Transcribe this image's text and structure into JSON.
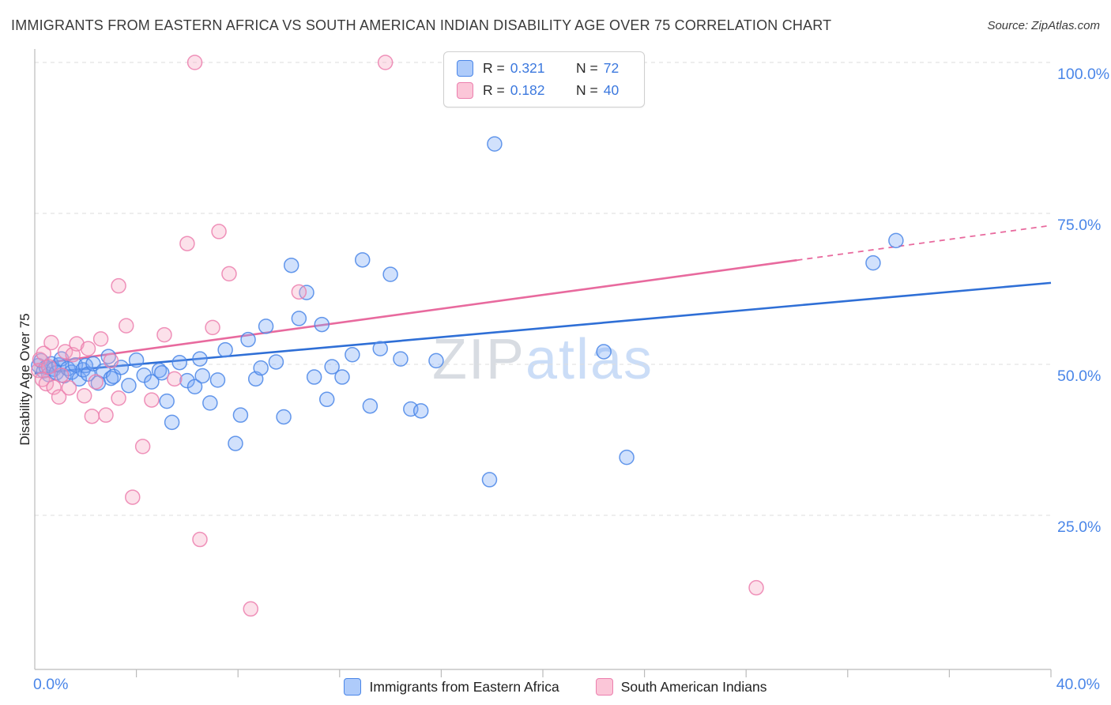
{
  "header": {
    "title": "IMMIGRANTS FROM EASTERN AFRICA VS SOUTH AMERICAN INDIAN DISABILITY AGE OVER 75 CORRELATION CHART",
    "source": "Source: ZipAtlas.com"
  },
  "watermark": {
    "part1": "ZIP",
    "part2": "atlas"
  },
  "legend_box": {
    "series": [
      {
        "r_label": "R =",
        "r_value": "0.321",
        "n_label": "N =",
        "n_value": "72",
        "color": "#aecbfa",
        "border": "#4a86e8"
      },
      {
        "r_label": "R =",
        "r_value": "0.182",
        "n_label": "N =",
        "n_value": "40",
        "color": "#fbc6d8",
        "border": "#ec7fae"
      }
    ]
  },
  "axes": {
    "y_label": "Disability Age Over 75",
    "y_ticks": [
      {
        "value": 100,
        "label": "100.0%"
      },
      {
        "value": 75,
        "label": "75.0%"
      },
      {
        "value": 50,
        "label": "50.0%"
      },
      {
        "value": 25,
        "label": "25.0%"
      }
    ],
    "x_min_label": "0.0%",
    "x_max_label": "40.0%",
    "tick_color": "#bbbbbb",
    "grid_color": "#dddddd",
    "label_color": "#4a86e8"
  },
  "bottom_legend": [
    {
      "label": "Immigrants from Eastern Africa",
      "color": "#aecbfa",
      "border": "#4a86e8"
    },
    {
      "label": "South American Indians",
      "color": "#fbc6d8",
      "border": "#ec7fae"
    }
  ],
  "chart_data": {
    "type": "scatter",
    "title": "Immigrants from Eastern Africa vs South American Indian Disability Age Over 75 Correlation",
    "xlabel": "Immigrants from Eastern Africa (%)",
    "ylabel": "Disability Age Over 75",
    "xlim": [
      0,
      40
    ],
    "ylim": [
      0,
      105
    ],
    "x_tick_interval": 4,
    "grid": "horizontal-dashed",
    "legend_position": "top-center",
    "series": [
      {
        "name": "Immigrants from Eastern Africa",
        "R": 0.321,
        "N": 72,
        "fill": "#7baaf7",
        "stroke": "#4a86e8",
        "points": [
          [
            0.15,
            49.8
          ],
          [
            0.25,
            50.6
          ],
          [
            0.35,
            48.9
          ],
          [
            0.45,
            49.5
          ],
          [
            0.55,
            48.3
          ],
          [
            0.65,
            50.1
          ],
          [
            0.75,
            49.2
          ],
          [
            0.85,
            48.6
          ],
          [
            0.95,
            49.9
          ],
          [
            1.05,
            50.9
          ],
          [
            1.15,
            48.1
          ],
          [
            1.3,
            49.3
          ],
          [
            1.45,
            48.7
          ],
          [
            1.6,
            49.9
          ],
          [
            1.75,
            47.6
          ],
          [
            1.9,
            49.1
          ],
          [
            2.0,
            49.8
          ],
          [
            2.1,
            48.4
          ],
          [
            2.3,
            50.1
          ],
          [
            2.5,
            46.9
          ],
          [
            2.7,
            48.9
          ],
          [
            2.9,
            51.3
          ],
          [
            3.0,
            47.7
          ],
          [
            3.1,
            48.0
          ],
          [
            3.4,
            49.5
          ],
          [
            3.7,
            46.5
          ],
          [
            4.0,
            50.7
          ],
          [
            4.3,
            48.2
          ],
          [
            4.6,
            47.1
          ],
          [
            4.9,
            49.0
          ],
          [
            5.0,
            48.6
          ],
          [
            5.2,
            43.9
          ],
          [
            5.4,
            40.4
          ],
          [
            5.7,
            50.3
          ],
          [
            6.0,
            47.3
          ],
          [
            6.3,
            46.3
          ],
          [
            6.5,
            50.9
          ],
          [
            6.6,
            48.1
          ],
          [
            6.9,
            43.6
          ],
          [
            7.2,
            47.4
          ],
          [
            7.5,
            52.4
          ],
          [
            7.9,
            36.9
          ],
          [
            8.1,
            41.6
          ],
          [
            8.4,
            54.1
          ],
          [
            8.7,
            47.6
          ],
          [
            8.9,
            49.4
          ],
          [
            9.1,
            56.3
          ],
          [
            9.5,
            50.4
          ],
          [
            9.8,
            41.3
          ],
          [
            10.1,
            66.4
          ],
          [
            10.4,
            57.6
          ],
          [
            10.7,
            61.9
          ],
          [
            11.0,
            47.9
          ],
          [
            11.3,
            56.6
          ],
          [
            11.5,
            44.2
          ],
          [
            11.7,
            49.6
          ],
          [
            12.1,
            47.9
          ],
          [
            12.5,
            51.6
          ],
          [
            12.9,
            67.3
          ],
          [
            13.2,
            43.1
          ],
          [
            13.6,
            52.6
          ],
          [
            14.0,
            64.9
          ],
          [
            14.4,
            50.9
          ],
          [
            14.8,
            42.6
          ],
          [
            15.2,
            42.3
          ],
          [
            15.8,
            50.6
          ],
          [
            17.9,
            30.9
          ],
          [
            18.1,
            86.5
          ],
          [
            22.4,
            52.1
          ],
          [
            23.3,
            34.6
          ],
          [
            33.0,
            66.8
          ],
          [
            33.9,
            70.5
          ]
        ]
      },
      {
        "name": "South American Indians",
        "R": 0.182,
        "N": 40,
        "fill": "#f7a8c4",
        "stroke": "#ec7fae",
        "points": [
          [
            0.15,
            49.0
          ],
          [
            0.2,
            50.8
          ],
          [
            0.3,
            47.5
          ],
          [
            0.35,
            51.8
          ],
          [
            0.45,
            46.8
          ],
          [
            0.55,
            49.6
          ],
          [
            0.65,
            53.6
          ],
          [
            0.75,
            46.2
          ],
          [
            0.95,
            44.6
          ],
          [
            1.05,
            48.2
          ],
          [
            1.2,
            52.1
          ],
          [
            1.35,
            46.1
          ],
          [
            1.5,
            51.6
          ],
          [
            1.65,
            53.4
          ],
          [
            1.95,
            44.8
          ],
          [
            2.1,
            52.6
          ],
          [
            2.25,
            41.4
          ],
          [
            2.4,
            47.1
          ],
          [
            2.6,
            54.2
          ],
          [
            2.8,
            41.6
          ],
          [
            3.0,
            50.6
          ],
          [
            3.3,
            44.4
          ],
          [
            3.3,
            63.0
          ],
          [
            3.6,
            56.4
          ],
          [
            3.85,
            28.0
          ],
          [
            4.25,
            36.4
          ],
          [
            4.6,
            44.1
          ],
          [
            5.1,
            54.9
          ],
          [
            5.5,
            47.6
          ],
          [
            6.0,
            70.0
          ],
          [
            6.3,
            100.0
          ],
          [
            6.5,
            21.0
          ],
          [
            7.0,
            56.1
          ],
          [
            7.25,
            72.0
          ],
          [
            7.65,
            65.0
          ],
          [
            8.5,
            9.5
          ],
          [
            10.4,
            62.0
          ],
          [
            13.8,
            100.0
          ],
          [
            22.6,
            100.0
          ],
          [
            28.4,
            13.0
          ]
        ]
      }
    ],
    "trend_lines": [
      {
        "series": "Immigrants from Eastern Africa",
        "color": "#2f6fd6",
        "style": "solid",
        "start": [
          0,
          48.5
        ],
        "end": [
          40,
          63.5
        ]
      },
      {
        "series": "South American Indians",
        "color": "#e86a9e",
        "style": "solid-then-dashed",
        "start": [
          0,
          50.0
        ],
        "dash_from": [
          30,
          67.25
        ],
        "end": [
          40,
          73.0
        ]
      }
    ]
  }
}
